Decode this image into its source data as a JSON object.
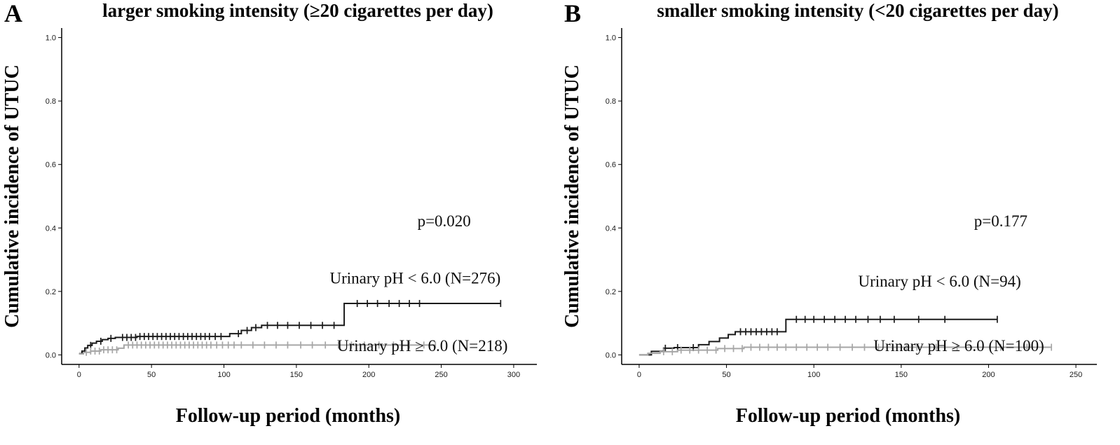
{
  "figure": {
    "background": "#ffffff",
    "curve_black": "#1b1b1b",
    "curve_gray": "#a6a6a6"
  },
  "chart_data": [
    {
      "type": "line",
      "panel_label": "A",
      "title": "larger smoking intensity (≥20 cigarettes per day)",
      "xlabel": "Follow-up period (months)",
      "ylabel": "Cumulative incidence of UTUC",
      "xlim": [
        -12,
        316
      ],
      "ylim": [
        -0.03,
        1.03
      ],
      "xticks": [
        0,
        50,
        100,
        150,
        200,
        250,
        300
      ],
      "yticks": [
        0,
        0.2,
        0.4,
        0.6,
        0.8,
        1
      ],
      "grid": false,
      "legend_position": "inline-labels",
      "annotation": {
        "text": "p=0.020",
        "x": 252,
        "y": 0.405
      },
      "series": [
        {
          "name": "Urinary pH < 6.0 (N=276)",
          "color": "#1b1b1b",
          "step": true,
          "label_x": 232,
          "label_y": 0.225,
          "x": [
            0,
            2,
            4,
            6,
            9,
            12,
            16,
            20,
            25,
            40,
            104,
            112,
            119,
            126,
            183,
            291
          ],
          "y": [
            0.004,
            0.012,
            0.022,
            0.03,
            0.037,
            0.043,
            0.048,
            0.052,
            0.055,
            0.058,
            0.067,
            0.077,
            0.086,
            0.093,
            0.162,
            0.162
          ],
          "censor_x": [
            8,
            15,
            22,
            30,
            33,
            36,
            39,
            42,
            45,
            48,
            51,
            54,
            57,
            60,
            63,
            66,
            69,
            72,
            75,
            78,
            81,
            84,
            87,
            90,
            94,
            98,
            110,
            116,
            122,
            130,
            137,
            144,
            152,
            160,
            168,
            176,
            192,
            199,
            206,
            214,
            221,
            228,
            235,
            291
          ]
        },
        {
          "name": "Urinary pH ≥ 6.0 (N=218)",
          "color": "#a6a6a6",
          "step": true,
          "label_x": 237,
          "label_y": 0.012,
          "x": [
            0,
            3,
            8,
            15,
            27,
            31,
            246
          ],
          "y": [
            0.003,
            0.008,
            0.012,
            0.016,
            0.021,
            0.031,
            0.031
          ],
          "censor_x": [
            5,
            8,
            11,
            14,
            17,
            20,
            23,
            26,
            34,
            37,
            40,
            43,
            46,
            49,
            52,
            55,
            58,
            61,
            64,
            67,
            70,
            73,
            76,
            79,
            82,
            85,
            88,
            91,
            95,
            99,
            103,
            107,
            112,
            120,
            128,
            136,
            144,
            153,
            161,
            170,
            179,
            188,
            197,
            207,
            217,
            228,
            238,
            246
          ]
        }
      ]
    },
    {
      "type": "line",
      "panel_label": "B",
      "title": "smaller smoking intensity (<20 cigarettes per day)",
      "xlabel": "Follow-up period (months)",
      "ylabel": "Cumulative incidence of UTUC",
      "xlim": [
        -10,
        262
      ],
      "ylim": [
        -0.03,
        1.03
      ],
      "xticks": [
        0,
        50,
        100,
        150,
        200,
        250
      ],
      "yticks": [
        0,
        0.2,
        0.4,
        0.6,
        0.8,
        1
      ],
      "grid": false,
      "legend_position": "inline-labels",
      "annotation": {
        "text": "p=0.177",
        "x": 207,
        "y": 0.405
      },
      "series": [
        {
          "name": "Urinary pH < 6.0 (N=94)",
          "color": "#1b1b1b",
          "step": true,
          "label_x": 172,
          "label_y": 0.215,
          "x": [
            0,
            7,
            14,
            20,
            34,
            40,
            46,
            51,
            55,
            84,
            205
          ],
          "y": [
            0.0,
            0.011,
            0.021,
            0.023,
            0.032,
            0.042,
            0.053,
            0.064,
            0.073,
            0.112,
            0.112
          ],
          "censor_x": [
            15,
            22,
            31,
            58,
            61,
            64,
            67,
            70,
            73,
            76,
            79,
            90,
            95,
            100,
            106,
            112,
            118,
            124,
            131,
            138,
            146,
            160,
            175,
            205
          ]
        },
        {
          "name": "Urinary pH ≥ 6.0 (N=100)",
          "color": "#a6a6a6",
          "step": true,
          "label_x": 183,
          "label_y": 0.012,
          "x": [
            0,
            5,
            12,
            22,
            45,
            60,
            236
          ],
          "y": [
            0.0,
            0.005,
            0.01,
            0.015,
            0.02,
            0.024,
            0.024
          ],
          "censor_x": [
            14,
            19,
            24,
            29,
            34,
            39,
            44,
            49,
            54,
            59,
            64,
            69,
            74,
            79,
            84,
            90,
            96,
            102,
            108,
            115,
            122,
            129,
            137,
            145,
            153,
            156,
            159,
            170,
            182,
            194,
            207,
            222,
            236
          ]
        }
      ]
    }
  ]
}
